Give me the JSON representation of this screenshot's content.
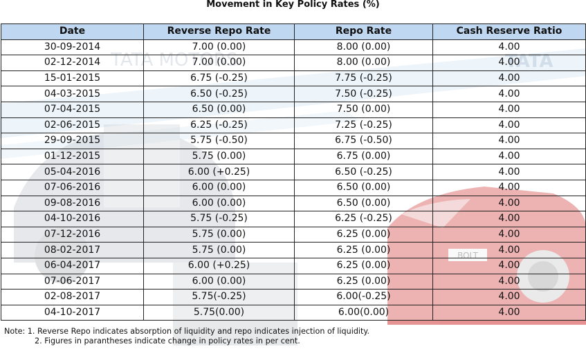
{
  "title": "Movement in Key Policy Rates (%)",
  "table": {
    "headers": [
      "Date",
      "Reverse Repo Rate",
      "Repo Rate",
      "Cash Reserve Ratio"
    ],
    "rows": [
      [
        "30-09-2014",
        "7.00 (0.00)",
        "8.00 (0.00)",
        "4.00"
      ],
      [
        "02-12-2014",
        "7.00 (0.00)",
        "8.00 (0.00)",
        "4.00"
      ],
      [
        "15-01-2015",
        "6.75 (-0.25)",
        "7.75 (-0.25)",
        "4.00"
      ],
      [
        "04-03-2015",
        "6.50 (-0.25)",
        "7.50 (-0.25)",
        "4.00"
      ],
      [
        "07-04-2015",
        "6.50 (0.00)",
        "7.50 (0.00)",
        "4.00"
      ],
      [
        "02-06-2015",
        "6.25 (-0.25)",
        "7.25 (-0.25)",
        "4.00"
      ],
      [
        "29-09-2015",
        "5.75 (-0.50)",
        "6.75 (-0.50)",
        "4.00"
      ],
      [
        "01-12-2015",
        "5.75 (0.00)",
        "6.75 (0.00)",
        "4.00"
      ],
      [
        "05-04-2016",
        "6.00 (+0.25)",
        "6.50 (-0.25)",
        "4.00"
      ],
      [
        "07-06-2016",
        "6.00 (0.00)",
        "6.50 (0.00)",
        "4.00"
      ],
      [
        "09-08-2016",
        "6.00 (0.00)",
        "6.50 (0.00)",
        "4.00"
      ],
      [
        "04-10-2016",
        "5.75 (-0.25)",
        "6.25 (-0.25)",
        "4.00"
      ],
      [
        "07-12-2016",
        "5.75 (0.00)",
        "6.25 (0.00)",
        "4.00"
      ],
      [
        "08-02-2017",
        "5.75 (0.00)",
        "6.25 (0.00)",
        "4.00"
      ],
      [
        "06-04-2017",
        "6.00 (+0.25)",
        "6.25 (0.00)",
        "4.00"
      ],
      [
        "07-06-2017",
        "6.00 (0.00)",
        "6.25 (0.00)",
        "4.00"
      ],
      [
        "02-08-2017",
        "5.75(-0.25)",
        "6.00(-0.25)",
        "4.00"
      ],
      [
        "04-10-2017",
        "5.75(0.00)",
        "6.00(0.00)",
        "4.00"
      ]
    ]
  },
  "notes": {
    "line1": "Note: 1. Reverse Repo indicates absorption of liquidity and repo indicates injection of liquidity.",
    "line2": "2. Figures in parantheses indicate change in policy rates in per cent."
  },
  "watermark": {
    "left_text": "TATA MOTORS",
    "right_text": "TATA",
    "car_plate": "BOLT"
  },
  "colors": {
    "header_bg": "#b6d2ee",
    "border": "#222222",
    "car_red": "#d23a3a"
  }
}
